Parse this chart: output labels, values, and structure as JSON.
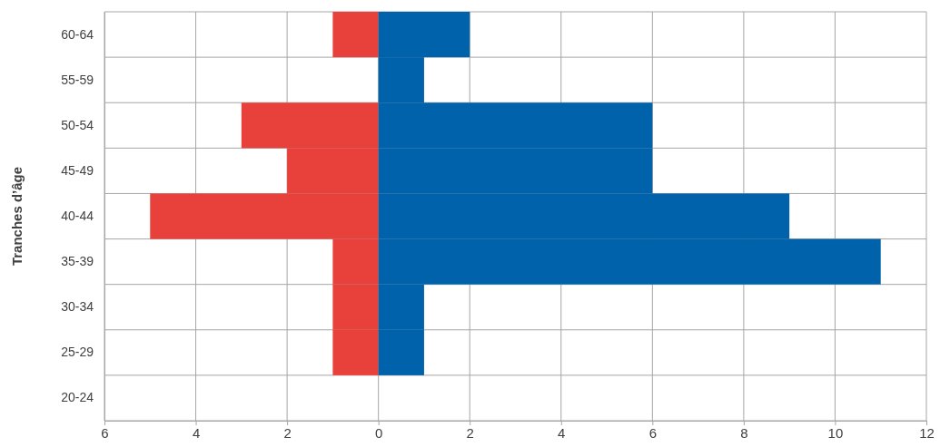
{
  "chart_data": {
    "type": "bar",
    "orientation": "horizontal",
    "stacked": true,
    "ylabel": "Tranches d’âge",
    "categories": [
      "60-64",
      "55-59",
      "50-54",
      "45-49",
      "40-44",
      "35-39",
      "30-34",
      "25-29",
      "20-24"
    ],
    "series": [
      {
        "color": "#e8403a",
        "values": [
          -1,
          0,
          -3,
          -2,
          -5,
          -1,
          -1,
          -1,
          0
        ]
      },
      {
        "color": "#0062ab",
        "values": [
          2,
          1,
          6,
          6,
          9,
          11,
          1,
          1,
          0
        ]
      }
    ],
    "xlim": [
      -6,
      12
    ],
    "xticks": [
      {
        "value": -6,
        "label": "6"
      },
      {
        "value": -4,
        "label": "4"
      },
      {
        "value": -2,
        "label": "2"
      },
      0,
      2,
      4,
      6,
      8,
      10,
      12
    ],
    "grid": true
  }
}
